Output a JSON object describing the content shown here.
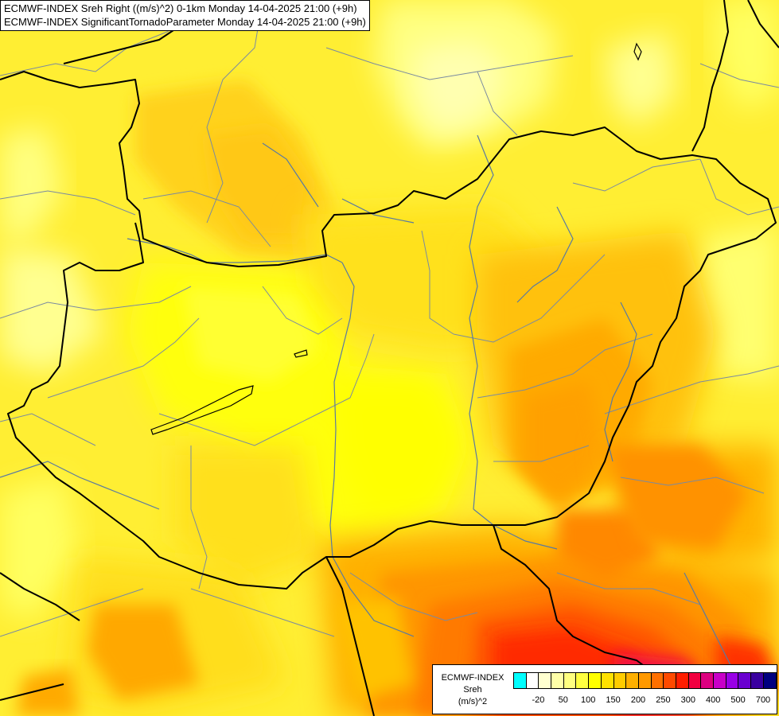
{
  "title": {
    "line1": "ECMWF-INDEX Sreh Right ((m/s)^2) 0-1km Monday 14-04-2025 21:00 (+9h)",
    "line2": "ECMWF-INDEX SignificantTornadoParameter Monday 14-04-2025 21:00 (+9h)"
  },
  "legend": {
    "line1": "ECMWF-INDEX",
    "line2": "Sreh",
    "line3": "(m/s)^2",
    "swatch_colors": [
      "#00ffff",
      "#ffffff",
      "#ffffd0",
      "#ffffa8",
      "#ffff80",
      "#ffff40",
      "#ffff00",
      "#ffe100",
      "#ffcc00",
      "#ffb000",
      "#ff9900",
      "#ff7000",
      "#ff4a00",
      "#ff1e00",
      "#f20040",
      "#dd0080",
      "#c800c8",
      "#9900e6",
      "#6a00d0",
      "#3a00a0",
      "#000080"
    ],
    "ticks": [
      "-20",
      "50",
      "100",
      "150",
      "200",
      "250",
      "300",
      "400",
      "500",
      "700"
    ]
  },
  "colors": {
    "background": "#ffee33",
    "border": "#000000",
    "river": "#5a7aa0",
    "region": "#7a8aa0"
  }
}
